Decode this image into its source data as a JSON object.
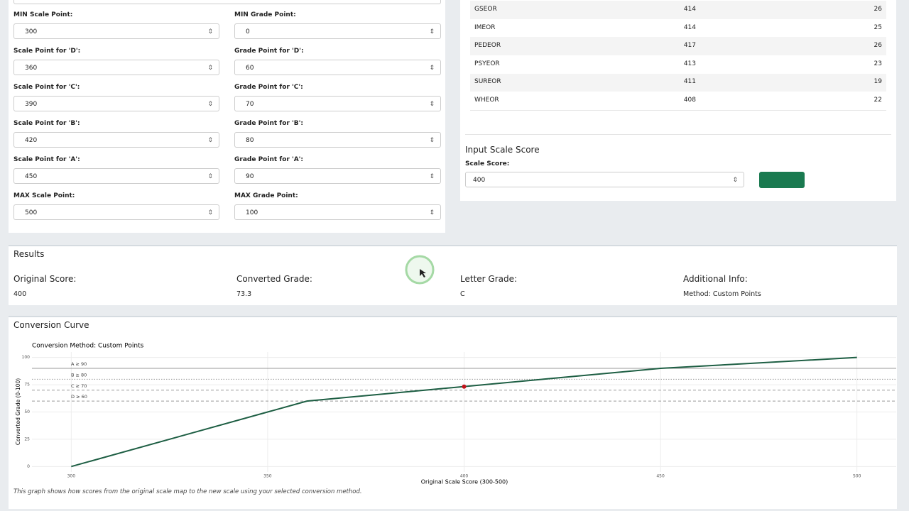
{
  "form": {
    "fields": [
      {
        "label": "MIN Scale Point:",
        "value": 300
      },
      {
        "label": "MIN Grade Point:",
        "value": 0
      },
      {
        "label": "Scale Point for 'D':",
        "value": 360
      },
      {
        "label": "Grade Point for 'D':",
        "value": 60
      },
      {
        "label": "Scale Point for 'C':",
        "value": 390
      },
      {
        "label": "Grade Point for 'C':",
        "value": 70
      },
      {
        "label": "Scale Point for 'B':",
        "value": 420
      },
      {
        "label": "Grade Point for 'B':",
        "value": 80
      },
      {
        "label": "Scale Point for 'A':",
        "value": 450
      },
      {
        "label": "Grade Point for 'A':",
        "value": 90
      },
      {
        "label": "MAX Scale Point:",
        "value": 500
      },
      {
        "label": "MAX Grade Point:",
        "value": 100
      }
    ]
  },
  "table": {
    "rows": [
      [
        "GSEOR",
        414,
        26
      ],
      [
        "IMEOR",
        414,
        25
      ],
      [
        "PEDEOR",
        417,
        26
      ],
      [
        "PSYEOR",
        413,
        23
      ],
      [
        "SUREOR",
        411,
        19
      ],
      [
        "WHEOR",
        408,
        22
      ]
    ]
  },
  "input": {
    "title": "Input Scale Score",
    "label": "Scale Score:",
    "value": 400
  },
  "results": {
    "title": "Results",
    "items": [
      {
        "label": "Original Score:",
        "value": "400"
      },
      {
        "label": "Converted Grade:",
        "value": "73.3"
      },
      {
        "label": "Letter Grade:",
        "value": "C"
      },
      {
        "label": "Additional Info:",
        "value": "Method: Custom Points"
      }
    ]
  },
  "chart_panel": {
    "title": "Conversion Curve",
    "caption": "This graph shows how scores from the original scale map to the new scale using your selected conversion method."
  },
  "chart_data": {
    "type": "line",
    "title": "Conversion Method: Custom Points",
    "x_label": "Original Scale Score (300-500)",
    "y_label": "Converted Grade (0-100)",
    "x": [
      300,
      360,
      390,
      420,
      450,
      500
    ],
    "series": [
      {
        "color": "#1d5e43",
        "values": [
          0,
          60,
          70,
          80,
          90,
          100
        ]
      }
    ],
    "point": {
      "x": 400,
      "y": 73.3,
      "color": "#c0141b"
    },
    "thresholds": [
      {
        "label": "A ≥ 90",
        "value": 90,
        "style": "solid"
      },
      {
        "label": "B ≥ 80",
        "value": 80,
        "style": "dotted"
      },
      {
        "label": "C ≥ 70",
        "value": 70,
        "style": "dashed"
      },
      {
        "label": "D ≥ 60",
        "value": 60,
        "style": "dashed"
      }
    ],
    "xlim": [
      290,
      510
    ],
    "ylim": [
      -5,
      105
    ],
    "xticks": [
      300,
      350,
      400,
      450,
      500
    ],
    "yticks": [
      0,
      25,
      50,
      75,
      100
    ],
    "grid": true
  }
}
